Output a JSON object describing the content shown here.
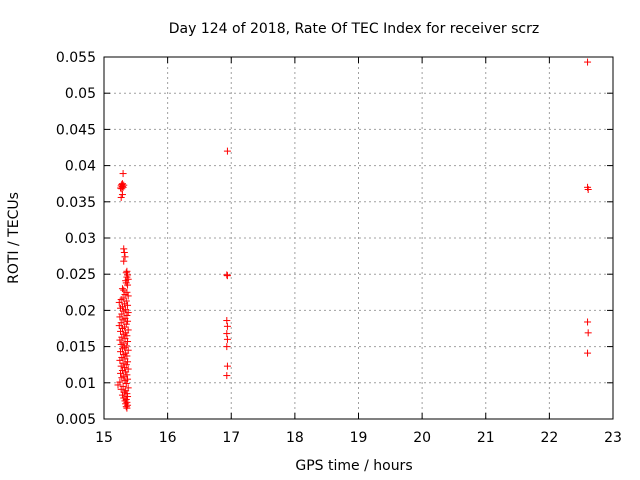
{
  "chart_data": {
    "type": "scatter",
    "title": "Day 124 of 2018, Rate Of TEC Index for receiver scrz",
    "xlabel": "GPS time / hours",
    "ylabel": "ROTI / TECUs",
    "xlim": [
      15,
      23
    ],
    "ylim": [
      0.005,
      0.055
    ],
    "xticks": [
      "15",
      "16",
      "17",
      "18",
      "19",
      "20",
      "21",
      "22",
      "23"
    ],
    "yticks": [
      "0.005",
      "0.01",
      "0.015",
      "0.02",
      "0.025",
      "0.03",
      "0.035",
      "0.04",
      "0.045",
      "0.05",
      "0.055"
    ],
    "grid": true,
    "marker": "+",
    "color": "#ff0000",
    "points": [
      [
        15.27,
        0.0372
      ],
      [
        15.28,
        0.0374
      ],
      [
        15.29,
        0.0371
      ],
      [
        15.3,
        0.037
      ],
      [
        15.26,
        0.0369
      ],
      [
        15.31,
        0.0373
      ],
      [
        15.28,
        0.0368
      ],
      [
        15.29,
        0.0375
      ],
      [
        15.3,
        0.0389
      ],
      [
        15.29,
        0.036
      ],
      [
        15.27,
        0.0356
      ],
      [
        15.31,
        0.0285
      ],
      [
        15.32,
        0.028
      ],
      [
        15.33,
        0.0274
      ],
      [
        15.31,
        0.0268
      ],
      [
        15.36,
        0.0254
      ],
      [
        15.35,
        0.0252
      ],
      [
        15.37,
        0.0249
      ],
      [
        15.36,
        0.0246
      ],
      [
        15.38,
        0.0243
      ],
      [
        15.34,
        0.0241
      ],
      [
        15.35,
        0.0238
      ],
      [
        15.37,
        0.0235
      ],
      [
        15.29,
        0.023
      ],
      [
        15.31,
        0.0228
      ],
      [
        15.36,
        0.0225
      ],
      [
        15.33,
        0.0222
      ],
      [
        15.38,
        0.022
      ],
      [
        15.3,
        0.0217
      ],
      [
        15.27,
        0.0215
      ],
      [
        15.35,
        0.0213
      ],
      [
        15.24,
        0.0211
      ],
      [
        15.32,
        0.0209
      ],
      [
        15.37,
        0.0207
      ],
      [
        15.29,
        0.0205
      ],
      [
        15.26,
        0.0203
      ],
      [
        15.34,
        0.0201
      ],
      [
        15.31,
        0.0199
      ],
      [
        15.38,
        0.0197
      ],
      [
        15.28,
        0.0195
      ],
      [
        15.36,
        0.0193
      ],
      [
        15.25,
        0.0191
      ],
      [
        15.33,
        0.0189
      ],
      [
        15.3,
        0.0187
      ],
      [
        15.37,
        0.0185
      ],
      [
        15.27,
        0.0183
      ],
      [
        15.35,
        0.0181
      ],
      [
        15.24,
        0.0179
      ],
      [
        15.32,
        0.0177
      ],
      [
        15.29,
        0.0175
      ],
      [
        15.38,
        0.0173
      ],
      [
        15.26,
        0.0171
      ],
      [
        15.34,
        0.0169
      ],
      [
        15.31,
        0.0167
      ],
      [
        15.36,
        0.0165
      ],
      [
        15.28,
        0.0163
      ],
      [
        15.33,
        0.0161
      ],
      [
        15.25,
        0.0159
      ],
      [
        15.37,
        0.0157
      ],
      [
        15.3,
        0.0155
      ],
      [
        15.27,
        0.0153
      ],
      [
        15.35,
        0.0151
      ],
      [
        15.32,
        0.0149
      ],
      [
        15.29,
        0.0147
      ],
      [
        15.38,
        0.0145
      ],
      [
        15.26,
        0.0143
      ],
      [
        15.34,
        0.0141
      ],
      [
        15.31,
        0.0139
      ],
      [
        15.36,
        0.0137
      ],
      [
        15.28,
        0.0135
      ],
      [
        15.33,
        0.0133
      ],
      [
        15.25,
        0.0131
      ],
      [
        15.37,
        0.0129
      ],
      [
        15.3,
        0.0127
      ],
      [
        15.35,
        0.0125
      ],
      [
        15.27,
        0.0123
      ],
      [
        15.32,
        0.0121
      ],
      [
        15.38,
        0.0119
      ],
      [
        15.29,
        0.0117
      ],
      [
        15.34,
        0.0115
      ],
      [
        15.26,
        0.0113
      ],
      [
        15.36,
        0.0111
      ],
      [
        15.31,
        0.0109
      ],
      [
        15.28,
        0.0107
      ],
      [
        15.37,
        0.0105
      ],
      [
        15.33,
        0.0103
      ],
      [
        15.25,
        0.0101
      ],
      [
        15.35,
        0.0099
      ],
      [
        15.22,
        0.0097
      ],
      [
        15.3,
        0.0095
      ],
      [
        15.38,
        0.0093
      ],
      [
        15.27,
        0.0091
      ],
      [
        15.34,
        0.0089
      ],
      [
        15.32,
        0.0087
      ],
      [
        15.36,
        0.0085
      ],
      [
        15.29,
        0.0083
      ],
      [
        15.37,
        0.0081
      ],
      [
        15.31,
        0.0079
      ],
      [
        15.35,
        0.0077
      ],
      [
        15.33,
        0.0075
      ],
      [
        15.36,
        0.0073
      ],
      [
        15.34,
        0.0071
      ],
      [
        15.37,
        0.0069
      ],
      [
        15.35,
        0.0067
      ],
      [
        15.36,
        0.0065
      ],
      [
        16.94,
        0.042
      ],
      [
        16.93,
        0.0249
      ],
      [
        16.94,
        0.0248
      ],
      [
        16.93,
        0.0186
      ],
      [
        16.94,
        0.0178
      ],
      [
        16.93,
        0.0168
      ],
      [
        16.94,
        0.016
      ],
      [
        16.93,
        0.015
      ],
      [
        16.94,
        0.0123
      ],
      [
        16.93,
        0.011
      ],
      [
        22.6,
        0.0543
      ],
      [
        22.6,
        0.037
      ],
      [
        22.61,
        0.0367
      ],
      [
        22.6,
        0.0184
      ],
      [
        22.61,
        0.0169
      ],
      [
        22.6,
        0.0141
      ]
    ]
  }
}
